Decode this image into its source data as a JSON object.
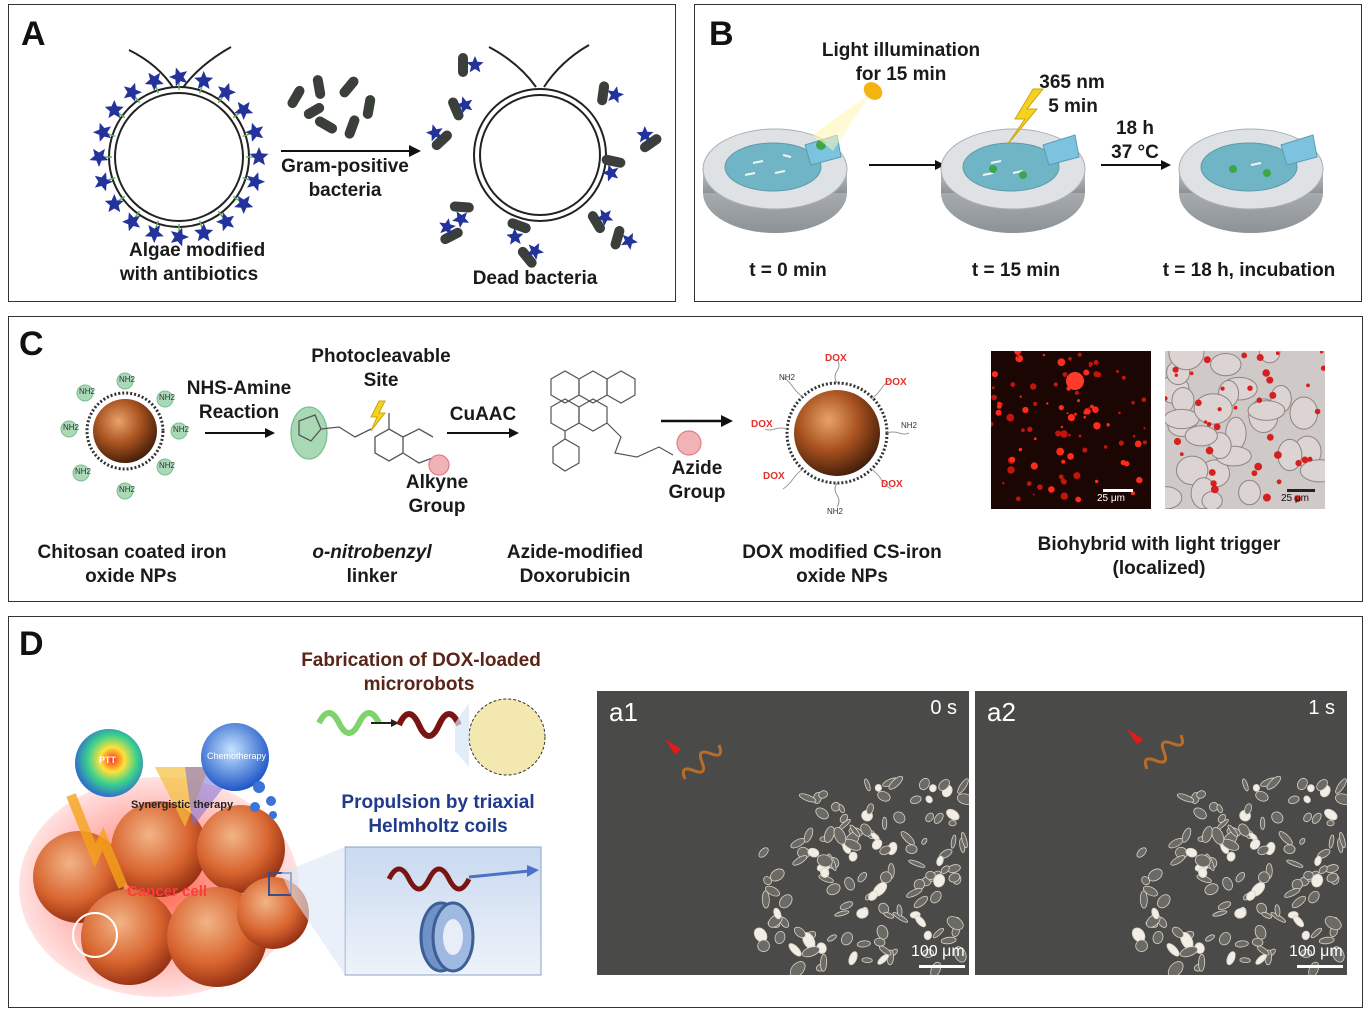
{
  "panels": {
    "a": {
      "letter": "A",
      "algae_label_1": "Algae modified",
      "algae_label_2": "with antibiotics",
      "arrow_label_1": "Gram-positive",
      "arrow_label_2": "bacteria",
      "dead_label": "Dead bacteria"
    },
    "b": {
      "letter": "B",
      "light_1": "Light illumination",
      "light_2": "for 15 min",
      "uv_1": "365 nm",
      "uv_2": "5 min",
      "incub_1": "18 h",
      "incub_2": "37 °C",
      "t0": "t = 0 min",
      "t15": "t = 15 min",
      "t18": "t = 18 h, incubation"
    },
    "c": {
      "letter": "C",
      "nhs_1": "NHS-Amine",
      "nhs_2": "Reaction",
      "photo_1": "Photocleavable",
      "photo_2": "Site",
      "cuaac": "CuAAC",
      "alkyne_1": "Alkyne",
      "alkyne_2": "Group",
      "azide_1": "Azide",
      "azide_2": "Group",
      "cap_np_1": "Chitosan coated iron",
      "cap_np_2": "oxide NPs",
      "cap_linker_1": "o-nitrobenzyl",
      "cap_linker_2": "linker",
      "cap_dox_1": "Azide-modified",
      "cap_dox_2": "Doxorubicin",
      "cap_doxnp_1": "DOX modified CS-iron",
      "cap_doxnp_2": "oxide NPs",
      "cap_bio_1": "Biohybrid with light trigger",
      "cap_bio_2": "(localized)",
      "nh2": "NH2",
      "dox": "DOX",
      "scale": "25 μm"
    },
    "d": {
      "letter": "D",
      "fab_1": "Fabrication of DOX-loaded",
      "fab_2": "microrobots",
      "prop_1": "Propulsion by triaxial",
      "prop_2": "Helmholtz coils",
      "ptt": "PTT",
      "chemo": "Chemotherapy",
      "syn": "Synergistic therapy",
      "cancer": "Cancer cell",
      "a1": "a1",
      "a2": "a2",
      "t0": "0 s",
      "t1": "1 s",
      "scale": "100 μm"
    }
  }
}
